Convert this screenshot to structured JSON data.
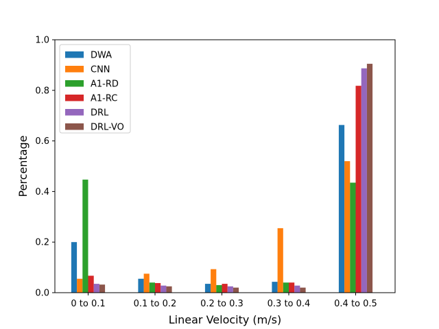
{
  "chart_data": {
    "type": "bar",
    "title": "",
    "xlabel": "Linear Velocity (m/s)",
    "ylabel": "Percentage",
    "ylim": [
      0,
      1.0
    ],
    "yticks": [
      "0.0",
      "0.2",
      "0.4",
      "0.6",
      "0.8",
      "1.0"
    ],
    "categories": [
      "0 to 0.1",
      "0.1 to 0.2",
      "0.2 to 0.3",
      "0.3 to 0.4",
      "0.4 to 0.5"
    ],
    "legend_position": "top-left",
    "series": [
      {
        "name": "DWA",
        "color": "#1f77b4",
        "values": [
          0.2,
          0.055,
          0.035,
          0.043,
          0.663
        ]
      },
      {
        "name": "CNN",
        "color": "#ff7f0e",
        "values": [
          0.055,
          0.075,
          0.093,
          0.255,
          0.52
        ]
      },
      {
        "name": "A1-RD",
        "color": "#2ca02c",
        "values": [
          0.447,
          0.04,
          0.03,
          0.04,
          0.435
        ]
      },
      {
        "name": "A1-RC",
        "color": "#d62728",
        "values": [
          0.067,
          0.038,
          0.035,
          0.04,
          0.818
        ]
      },
      {
        "name": "DRL",
        "color": "#9467bd",
        "values": [
          0.035,
          0.028,
          0.025,
          0.028,
          0.887
        ]
      },
      {
        "name": "DRL-VO",
        "color": "#8c564b",
        "values": [
          0.032,
          0.025,
          0.02,
          0.02,
          0.905
        ]
      }
    ]
  }
}
